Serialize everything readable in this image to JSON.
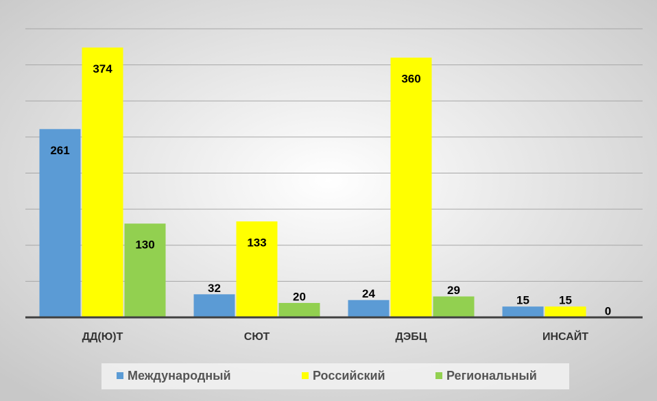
{
  "chart_data": {
    "type": "bar",
    "categories": [
      "ДД(Ю)Т",
      "СЮТ",
      "ДЭБЦ",
      "ИНСАЙТ"
    ],
    "series": [
      {
        "name": "Международный",
        "color": "#5b9bd5",
        "values": [
          261,
          32,
          24,
          15
        ]
      },
      {
        "name": "Российский",
        "color": "#ffff00",
        "values": [
          374,
          133,
          360,
          15
        ]
      },
      {
        "name": "Региональный",
        "color": "#92d050",
        "values": [
          130,
          20,
          29,
          0
        ]
      }
    ],
    "ylim": [
      0,
      400
    ],
    "yticks": [
      0,
      50,
      100,
      150,
      200,
      250,
      300,
      350,
      400
    ],
    "grid": true,
    "legend": "bottom"
  }
}
